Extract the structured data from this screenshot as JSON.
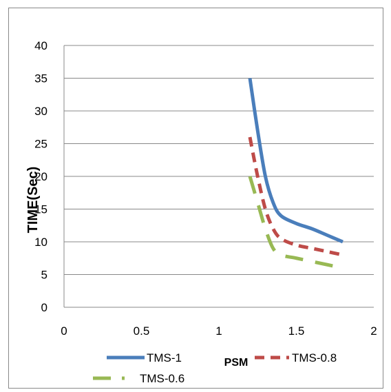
{
  "chart_data": {
    "type": "line",
    "title": "",
    "xlabel": "PSM",
    "ylabel": "TIME(Sec)",
    "xlim": [
      0,
      2
    ],
    "ylim": [
      0,
      40
    ],
    "xticks": [
      "0",
      "0.5",
      "1",
      "1.5",
      "2"
    ],
    "yticks": [
      "0",
      "5",
      "10",
      "15",
      "20",
      "25",
      "30",
      "35",
      "40"
    ],
    "grid": "horizontal",
    "legend_position": "bottom",
    "series": [
      {
        "name": "TMS-1",
        "color": "#4a7ebb",
        "dash": "solid",
        "x": [
          1.2,
          1.25,
          1.3,
          1.35,
          1.4,
          1.5,
          1.6,
          1.7,
          1.8
        ],
        "y": [
          35,
          27,
          20,
          16,
          14,
          12.8,
          12,
          11,
          10
        ]
      },
      {
        "name": "TMS-0.8",
        "color": "#be4b48",
        "dash": "dash",
        "x": [
          1.2,
          1.25,
          1.3,
          1.35,
          1.4,
          1.5,
          1.6,
          1.7,
          1.8
        ],
        "y": [
          26,
          20,
          15,
          12,
          10.5,
          9.5,
          9,
          8.5,
          8
        ]
      },
      {
        "name": "TMS-0.6",
        "color": "#98b954",
        "dash": "longdash",
        "x": [
          1.2,
          1.25,
          1.3,
          1.35,
          1.4,
          1.5,
          1.6,
          1.7,
          1.8
        ],
        "y": [
          20,
          16,
          12,
          9,
          8,
          7.5,
          7,
          6.5,
          6
        ]
      }
    ]
  }
}
